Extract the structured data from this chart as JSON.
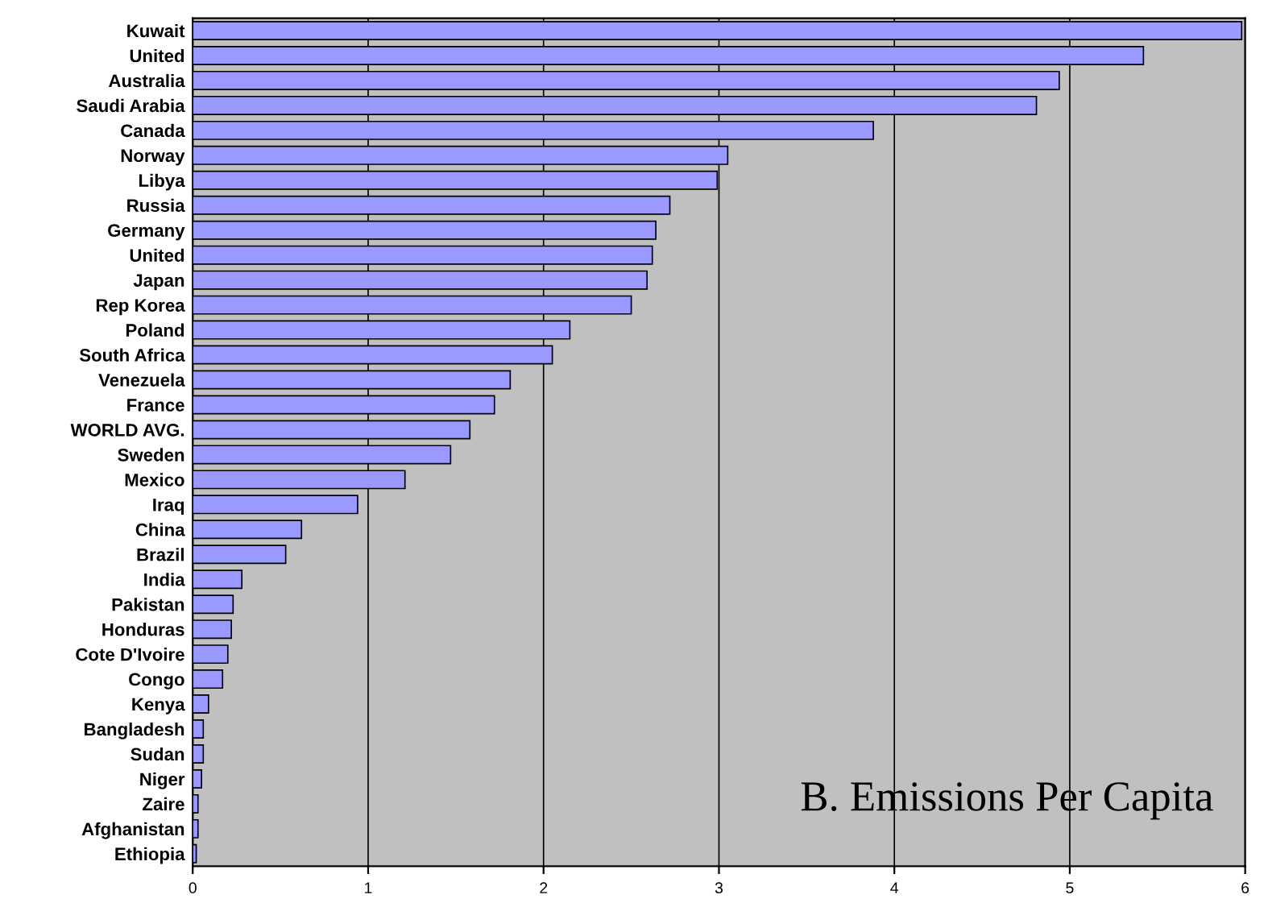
{
  "chart_data": {
    "type": "bar",
    "orientation": "horizontal",
    "title": "B. Emissions Per Capita",
    "categories": [
      "Kuwait",
      "United",
      "Australia",
      "Saudi Arabia",
      "Canada",
      "Norway",
      "Libya",
      "Russia",
      "Germany",
      "United",
      "Japan",
      "Rep Korea",
      "Poland",
      "South Africa",
      "Venezuela",
      "France",
      "WORLD AVG.",
      "Sweden",
      "Mexico",
      "Iraq",
      "China",
      "Brazil",
      "India",
      "Pakistan",
      "Honduras",
      "Cote D'Ivoire",
      "Congo",
      "Kenya",
      "Bangladesh",
      "Sudan",
      "Niger",
      "Zaire",
      "Afghanistan",
      "Ethiopia"
    ],
    "values": [
      5.98,
      5.42,
      4.94,
      4.81,
      3.88,
      3.05,
      2.99,
      2.72,
      2.64,
      2.62,
      2.59,
      2.5,
      2.15,
      2.05,
      1.81,
      1.72,
      1.58,
      1.47,
      1.21,
      0.94,
      0.62,
      0.53,
      0.28,
      0.23,
      0.22,
      0.2,
      0.17,
      0.09,
      0.06,
      0.06,
      0.05,
      0.03,
      0.03,
      0.02
    ],
    "color": "#9999ff",
    "xlim": [
      0,
      6
    ],
    "xticks": [
      0,
      1,
      2,
      3,
      4,
      5,
      6
    ],
    "grid": "x"
  }
}
